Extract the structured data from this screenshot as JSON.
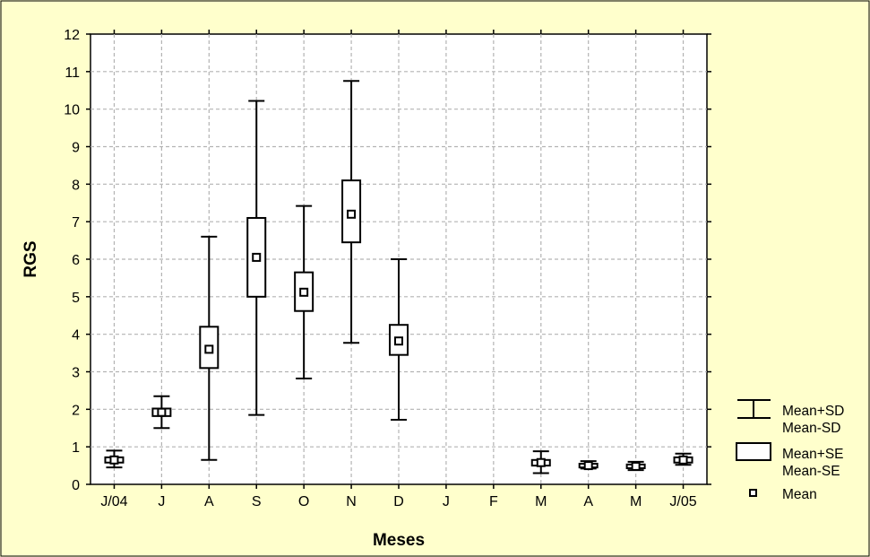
{
  "chart_data": {
    "type": "box",
    "xlabel": "Meses",
    "ylabel": "RGS",
    "ylim": [
      0,
      12
    ],
    "yticks": [
      0,
      1,
      2,
      3,
      4,
      5,
      6,
      7,
      8,
      9,
      10,
      11,
      12
    ],
    "categories": [
      "J/04",
      "J",
      "A",
      "S",
      "O",
      "N",
      "D",
      "J",
      "F",
      "M",
      "A",
      "M",
      "J/05"
    ],
    "series": [
      {
        "mean": [
          0.65,
          1.92,
          3.6,
          6.05,
          5.12,
          7.2,
          3.82,
          null,
          null,
          0.58,
          0.5,
          0.48,
          0.65
        ],
        "se_low": [
          0.58,
          1.82,
          3.1,
          5.0,
          4.62,
          6.45,
          3.45,
          null,
          null,
          0.5,
          0.45,
          0.43,
          0.58
        ],
        "se_high": [
          0.72,
          2.02,
          4.2,
          7.1,
          5.65,
          8.1,
          4.25,
          null,
          null,
          0.65,
          0.55,
          0.53,
          0.72
        ],
        "sd_low": [
          0.45,
          1.5,
          0.65,
          1.85,
          2.82,
          3.77,
          1.72,
          null,
          null,
          0.3,
          0.42,
          0.38,
          0.52
        ],
        "sd_high": [
          0.9,
          2.35,
          6.6,
          10.22,
          7.42,
          10.75,
          6.0,
          null,
          null,
          0.88,
          0.62,
          0.6,
          0.82
        ]
      }
    ],
    "grid": true,
    "legend_position": "right"
  },
  "legend": {
    "sd_line1": "Mean+SD",
    "sd_line2": "Mean-SD",
    "se_line1": "Mean+SE",
    "se_line2": "Mean-SE",
    "mean": "Mean"
  },
  "colors": {
    "background": "#ffffcc",
    "plot": "#ffffff",
    "ink": "#000000",
    "grid": "#b3b3b3"
  }
}
